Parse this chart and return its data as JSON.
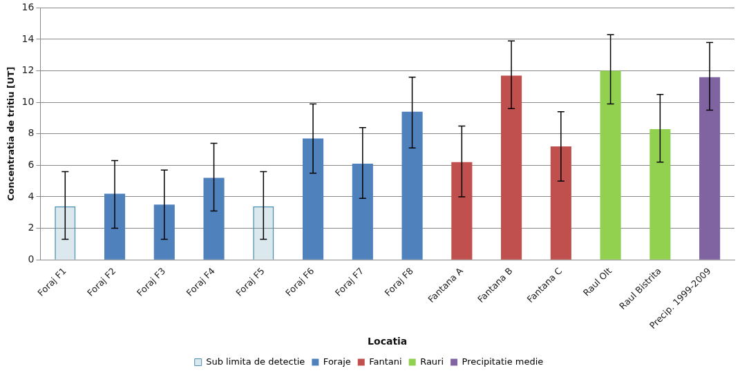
{
  "chart_data": {
    "type": "bar",
    "xlabel": "Locatia",
    "ylabel": "Concentratia de tritiu [UT]",
    "categories": [
      "Foraj F1",
      "Foraj F2",
      "Foraj F3",
      "Foraj F4",
      "Foraj F5",
      "Foraj F6",
      "Foraj F7",
      "Foraj F8",
      "Fantana A",
      "Fantana B",
      "Fantana C",
      "Raul Olt",
      "Raul Bistrita",
      "Precip. 1999-2009"
    ],
    "series": [
      {
        "name": "Sub limita de detectie",
        "color": "#4a8fb0",
        "values": [
          3.4,
          null,
          null,
          null,
          3.4,
          null,
          null,
          null,
          null,
          null,
          null,
          null,
          null,
          null
        ],
        "errors": [
          [
            1.3,
            5.6
          ],
          null,
          null,
          null,
          [
            1.3,
            5.6
          ],
          null,
          null,
          null,
          null,
          null,
          null,
          null,
          null,
          null
        ]
      },
      {
        "name": "Foraje",
        "color": "#4f81bd",
        "values": [
          null,
          4.2,
          3.5,
          5.2,
          null,
          7.7,
          6.1,
          9.4,
          null,
          null,
          null,
          null,
          null,
          null
        ],
        "errors": [
          null,
          [
            2.0,
            6.3
          ],
          [
            1.3,
            5.7
          ],
          [
            3.1,
            7.4
          ],
          null,
          [
            5.5,
            9.9
          ],
          [
            3.9,
            8.4
          ],
          [
            7.1,
            11.6
          ],
          null,
          null,
          null,
          null,
          null,
          null
        ]
      },
      {
        "name": "Fantani",
        "color": "#c0504d",
        "values": [
          null,
          null,
          null,
          null,
          null,
          null,
          null,
          null,
          6.2,
          11.7,
          7.2,
          null,
          null,
          null
        ],
        "errors": [
          null,
          null,
          null,
          null,
          null,
          null,
          null,
          null,
          [
            4.0,
            8.5
          ],
          [
            9.6,
            13.9
          ],
          [
            5.0,
            9.4
          ],
          null,
          null,
          null
        ]
      },
      {
        "name": "Rauri",
        "color": "#92d050",
        "values": [
          null,
          null,
          null,
          null,
          null,
          null,
          null,
          null,
          null,
          null,
          null,
          12.0,
          8.3,
          null
        ],
        "errors": [
          null,
          null,
          null,
          null,
          null,
          null,
          null,
          null,
          null,
          null,
          null,
          [
            9.9,
            14.3
          ],
          [
            6.2,
            10.5
          ],
          null
        ]
      },
      {
        "name": "Precipitatie medie",
        "color": "#8064a2",
        "values": [
          null,
          null,
          null,
          null,
          null,
          null,
          null,
          null,
          null,
          null,
          null,
          null,
          null,
          11.6
        ],
        "errors": [
          null,
          null,
          null,
          null,
          null,
          null,
          null,
          null,
          null,
          null,
          null,
          null,
          null,
          [
            9.5,
            13.8
          ]
        ]
      }
    ],
    "ylim": [
      0,
      16
    ],
    "yticks": [
      0,
      2,
      4,
      6,
      8,
      10,
      12,
      14,
      16
    ],
    "grid": "y",
    "legend": "bottom"
  }
}
